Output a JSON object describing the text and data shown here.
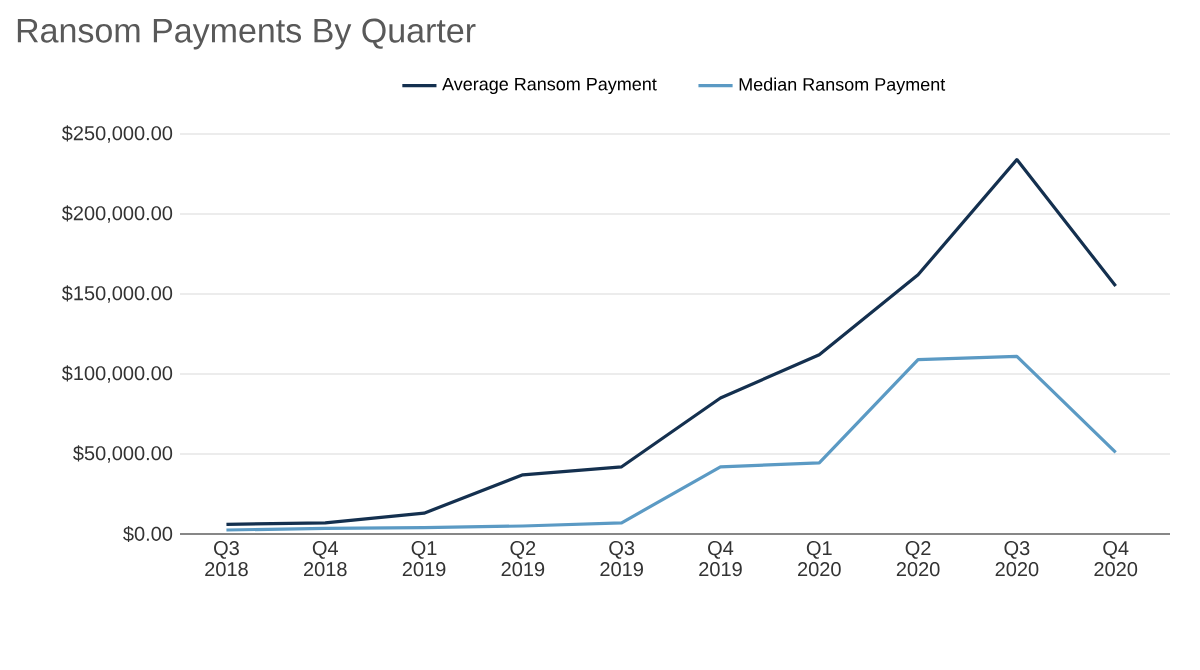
{
  "chart_data": {
    "type": "line",
    "title": "Ransom Payments By Quarter",
    "categories": [
      "Q3 2018",
      "Q4 2018",
      "Q1 2019",
      "Q2 2019",
      "Q3 2019",
      "Q4 2019",
      "Q1 2020",
      "Q2 2020",
      "Q3 2020",
      "Q4 2020"
    ],
    "series": [
      {
        "name": "Average Ransom Payment",
        "color": "#14304f",
        "values": [
          6000,
          7000,
          13000,
          37000,
          42000,
          85000,
          112000,
          162000,
          234000,
          155000
        ]
      },
      {
        "name": "Median Ransom Payment",
        "color": "#5b9ac4",
        "values": [
          2500,
          3500,
          4000,
          5000,
          7000,
          42000,
          44500,
          109000,
          111000,
          51000
        ]
      }
    ],
    "ylim": [
      0,
      250000
    ],
    "yticks": [
      {
        "value": 0,
        "label": "$0.00"
      },
      {
        "value": 50000,
        "label": "$50,000.00"
      },
      {
        "value": 100000,
        "label": "$100,000.00"
      },
      {
        "value": 150000,
        "label": "$150,000.00"
      },
      {
        "value": 200000,
        "label": "$200,000.00"
      },
      {
        "value": 250000,
        "label": "$250,000.00"
      }
    ],
    "grid": "y",
    "legend": "top",
    "marker": "none",
    "line_style": "solid"
  }
}
